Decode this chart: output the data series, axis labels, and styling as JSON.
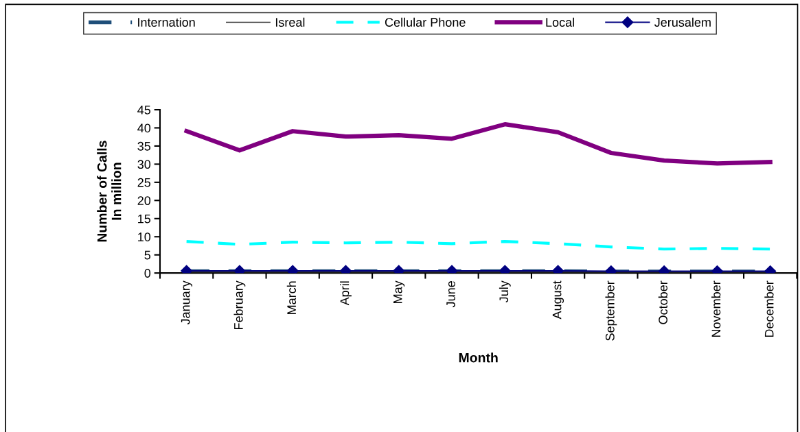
{
  "chart_data": {
    "type": "line",
    "xlabel": "Month",
    "ylabel": "Number of Calls\nIn million",
    "categories": [
      "January",
      "February",
      "March",
      "April",
      "May",
      "June",
      "July",
      "August",
      "September",
      "October",
      "November",
      "December"
    ],
    "series": [
      {
        "name": "Internation",
        "color": "#1f4e79",
        "line_style": "dashed",
        "marker": "none",
        "values": [
          0.5,
          0.5,
          0.5,
          0.5,
          0.5,
          0.5,
          0.5,
          0.5,
          0.4,
          0.4,
          0.4,
          0.4
        ]
      },
      {
        "name": "Isreal",
        "color": "#333333",
        "line_style": "solid",
        "marker": "none",
        "values": [
          0.3,
          0.3,
          0.3,
          0.3,
          0.3,
          0.3,
          0.3,
          0.3,
          0.3,
          0.3,
          0.3,
          0.3
        ]
      },
      {
        "name": "Cellular Phone",
        "color": "#00ffff",
        "line_style": "dashed",
        "marker": "none",
        "values": [
          8.7,
          7.9,
          8.5,
          8.3,
          8.5,
          8.1,
          8.7,
          8.1,
          7.2,
          6.6,
          6.8,
          6.6
        ]
      },
      {
        "name": "Local",
        "color": "#800080",
        "line_style": "solid",
        "marker": "none",
        "values": [
          39.1,
          33.8,
          39.1,
          37.6,
          38.0,
          37.0,
          41.0,
          38.8,
          33.1,
          31.0,
          30.2,
          30.6
        ]
      },
      {
        "name": "Jerusalem",
        "color": "#000080",
        "line_style": "solid",
        "marker": "diamond",
        "values": [
          0.6,
          0.6,
          0.6,
          0.6,
          0.6,
          0.6,
          0.6,
          0.6,
          0.5,
          0.5,
          0.5,
          0.5
        ]
      }
    ],
    "ylim": [
      0,
      45
    ],
    "yticks": [
      0,
      5,
      10,
      15,
      20,
      25,
      30,
      35,
      40,
      45
    ],
    "grid": false,
    "legend": "top"
  }
}
